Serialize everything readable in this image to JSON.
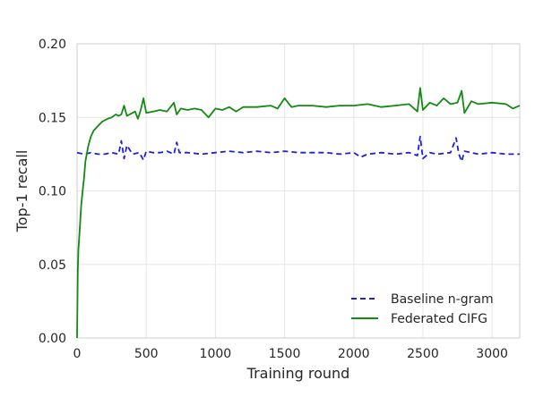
{
  "chart_data": {
    "type": "line",
    "title": "",
    "xlabel": "Training round",
    "ylabel": "Top-1 recall",
    "xlim": [
      0,
      3200
    ],
    "ylim": [
      0.0,
      0.2
    ],
    "xticks": [
      0,
      500,
      1000,
      1500,
      2000,
      2500,
      3000
    ],
    "yticks": [
      0.0,
      0.05,
      0.1,
      0.15,
      0.2
    ],
    "xtick_labels": [
      "0",
      "500",
      "1000",
      "1500",
      "2000",
      "2500",
      "3000"
    ],
    "ytick_labels": [
      "0.00",
      "0.05",
      "0.10",
      "0.15",
      "0.20"
    ],
    "grid": true,
    "legend_position": "lower-right",
    "series": [
      {
        "name": "Baseline n-gram",
        "color": "#1f1fdc",
        "style": "dashed",
        "x": [
          0,
          50,
          100,
          150,
          200,
          250,
          300,
          320,
          340,
          360,
          400,
          450,
          480,
          500,
          550,
          600,
          650,
          700,
          720,
          740,
          800,
          900,
          1000,
          1100,
          1200,
          1300,
          1400,
          1500,
          1600,
          1700,
          1800,
          1900,
          2000,
          2050,
          2100,
          2200,
          2300,
          2400,
          2460,
          2480,
          2500,
          2550,
          2600,
          2700,
          2740,
          2760,
          2780,
          2800,
          2900,
          3000,
          3100,
          3200
        ],
        "y": [
          0.126,
          0.125,
          0.126,
          0.125,
          0.125,
          0.126,
          0.125,
          0.134,
          0.122,
          0.131,
          0.125,
          0.126,
          0.121,
          0.127,
          0.126,
          0.126,
          0.127,
          0.125,
          0.133,
          0.126,
          0.126,
          0.125,
          0.126,
          0.127,
          0.126,
          0.127,
          0.126,
          0.127,
          0.126,
          0.126,
          0.126,
          0.125,
          0.126,
          0.123,
          0.125,
          0.126,
          0.125,
          0.126,
          0.124,
          0.137,
          0.122,
          0.126,
          0.125,
          0.126,
          0.136,
          0.125,
          0.12,
          0.127,
          0.125,
          0.126,
          0.125,
          0.125
        ]
      },
      {
        "name": "Federated CIFG",
        "color": "#138a13",
        "style": "solid",
        "x": [
          0,
          5,
          10,
          20,
          30,
          40,
          50,
          60,
          70,
          80,
          100,
          120,
          140,
          160,
          180,
          200,
          220,
          250,
          280,
          300,
          320,
          340,
          360,
          400,
          420,
          440,
          460,
          480,
          500,
          550,
          600,
          650,
          700,
          720,
          750,
          800,
          850,
          900,
          950,
          1000,
          1050,
          1100,
          1150,
          1200,
          1300,
          1400,
          1450,
          1500,
          1550,
          1600,
          1700,
          1800,
          1900,
          2000,
          2100,
          2200,
          2300,
          2400,
          2460,
          2480,
          2500,
          2550,
          2600,
          2650,
          2700,
          2750,
          2780,
          2800,
          2850,
          2900,
          3000,
          3100,
          3150,
          3200
        ],
        "y": [
          0.0,
          0.045,
          0.06,
          0.075,
          0.09,
          0.1,
          0.108,
          0.12,
          0.125,
          0.13,
          0.137,
          0.141,
          0.143,
          0.145,
          0.147,
          0.148,
          0.149,
          0.15,
          0.152,
          0.151,
          0.152,
          0.158,
          0.151,
          0.153,
          0.154,
          0.149,
          0.155,
          0.163,
          0.153,
          0.154,
          0.155,
          0.154,
          0.16,
          0.152,
          0.156,
          0.155,
          0.156,
          0.155,
          0.15,
          0.156,
          0.155,
          0.157,
          0.154,
          0.157,
          0.157,
          0.158,
          0.156,
          0.163,
          0.157,
          0.158,
          0.158,
          0.157,
          0.158,
          0.158,
          0.159,
          0.157,
          0.158,
          0.159,
          0.154,
          0.17,
          0.155,
          0.16,
          0.158,
          0.163,
          0.159,
          0.16,
          0.168,
          0.153,
          0.161,
          0.159,
          0.16,
          0.159,
          0.156,
          0.158
        ]
      }
    ]
  }
}
